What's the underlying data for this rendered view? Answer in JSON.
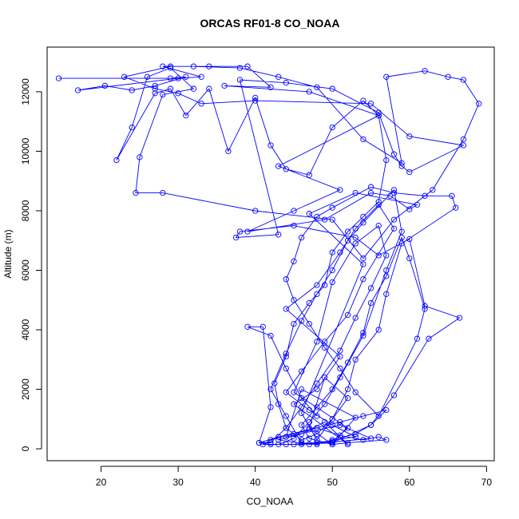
{
  "chart_data": {
    "type": "scatter",
    "title": "ORCAS RF01-8 CO_NOAA",
    "xlabel": "CO_NOAA",
    "ylabel": "Altitude (m)",
    "xlim": [
      13,
      71
    ],
    "ylim": [
      -400,
      13500
    ],
    "xticks": [
      20,
      30,
      40,
      50,
      60,
      70
    ],
    "yticks": [
      0,
      2000,
      4000,
      6000,
      8000,
      10000,
      12000
    ],
    "tick_labels_x": [
      "20",
      "30",
      "40",
      "50",
      "60",
      "70"
    ],
    "tick_labels_y": [
      "0",
      "2000",
      "4000",
      "6000",
      "8000",
      "10000",
      "12000"
    ],
    "grid": false,
    "legend": "none",
    "series_color": "#0000ff",
    "marker": "open-circle",
    "line": "connected",
    "series": [
      {
        "points": [
          [
            14.5,
            12450
          ],
          [
            29,
            12450
          ],
          [
            31,
            12500
          ],
          [
            27,
            12200
          ],
          [
            24,
            12050
          ],
          [
            20.5,
            12200
          ],
          [
            17,
            12050
          ],
          [
            30,
            12450
          ],
          [
            33,
            12500
          ],
          [
            28,
            12850
          ],
          [
            34,
            12850
          ],
          [
            39,
            12850
          ],
          [
            42,
            12150
          ],
          [
            36,
            12200
          ],
          [
            47,
            12000
          ],
          [
            56,
            11200
          ],
          [
            43,
            9500
          ],
          [
            51,
            8700
          ],
          [
            45,
            8000
          ],
          [
            39,
            7300
          ],
          [
            49,
            7700
          ],
          [
            55,
            8600
          ],
          [
            57.5,
            8500
          ],
          [
            60,
            8050
          ],
          [
            61,
            8200
          ],
          [
            53,
            8600
          ],
          [
            47,
            7900
          ],
          [
            54,
            6200
          ],
          [
            46,
            1200
          ],
          [
            48,
            300
          ],
          [
            52,
            1700
          ],
          [
            49,
            2400
          ],
          [
            47,
            700
          ],
          [
            50,
            150
          ],
          [
            53,
            1050
          ],
          [
            46,
            2000
          ],
          [
            44,
            400
          ],
          [
            51,
            800
          ],
          [
            55,
            350
          ],
          [
            47,
            150
          ],
          [
            43,
            300
          ],
          [
            46,
            500
          ],
          [
            49,
            900
          ],
          [
            52,
            150
          ],
          [
            45,
            1500
          ],
          [
            48,
            2000
          ],
          [
            51,
            3100
          ],
          [
            44,
            4700
          ],
          [
            48,
            5500
          ],
          [
            51,
            6600
          ],
          [
            53,
            7400
          ],
          [
            56,
            8200
          ],
          [
            58,
            7400
          ],
          [
            54,
            5700
          ],
          [
            52,
            4500
          ],
          [
            49,
            3600
          ],
          [
            46,
            2600
          ],
          [
            44,
            1900
          ],
          [
            47,
            1300
          ],
          [
            50,
            800
          ],
          [
            53,
            400
          ],
          [
            48,
            200
          ],
          [
            45,
            150
          ],
          [
            50,
            250
          ],
          [
            52,
            700
          ],
          [
            45,
            1900
          ],
          [
            48,
            3600
          ],
          [
            50,
            5600
          ],
          [
            53,
            6900
          ],
          [
            56,
            7500
          ],
          [
            57,
            6500
          ],
          [
            55,
            5400
          ],
          [
            53,
            4400
          ],
          [
            51,
            3300
          ],
          [
            48,
            2200
          ],
          [
            46,
            1400
          ],
          [
            44,
            700
          ],
          [
            42,
            200
          ],
          [
            40.5,
            200
          ],
          [
            43,
            400
          ],
          [
            47,
            650
          ],
          [
            51,
            900
          ],
          [
            54,
            1100
          ],
          [
            57,
            1300
          ],
          [
            55,
            800
          ],
          [
            53,
            500
          ],
          [
            50,
            300
          ],
          [
            48,
            150
          ],
          [
            46,
            200
          ],
          [
            44,
            1100
          ],
          [
            42,
            2000
          ],
          [
            44,
            3200
          ],
          [
            46,
            4300
          ],
          [
            48,
            5200
          ],
          [
            50,
            6000
          ],
          [
            52,
            7000
          ],
          [
            54,
            7600
          ],
          [
            58,
            8700
          ],
          [
            59,
            7300
          ],
          [
            57,
            6000
          ],
          [
            54,
            3800
          ],
          [
            51,
            2400
          ],
          [
            49,
            1500
          ],
          [
            47,
            900
          ],
          [
            45,
            350
          ],
          [
            43,
            150
          ],
          [
            41,
            150
          ],
          [
            42,
            300
          ],
          [
            45,
            500
          ],
          [
            48,
            700
          ],
          [
            51,
            450
          ],
          [
            54,
            300
          ],
          [
            56,
            400
          ],
          [
            57,
            300
          ],
          [
            52,
            200
          ],
          [
            50,
            150
          ],
          [
            47,
            350
          ],
          [
            46,
            800
          ],
          [
            48,
            1400
          ],
          [
            50,
            2000
          ],
          [
            52,
            2900
          ],
          [
            54,
            3900
          ],
          [
            55,
            4900
          ],
          [
            57,
            5800
          ],
          [
            59,
            7100
          ],
          [
            60,
            6400
          ],
          [
            62,
            4700
          ],
          [
            61,
            3700
          ],
          [
            56,
            1100
          ],
          [
            53,
            1900
          ],
          [
            51,
            2700
          ],
          [
            49,
            3400
          ],
          [
            47,
            4200
          ],
          [
            45,
            5000
          ],
          [
            44,
            5700
          ],
          [
            45,
            6300
          ],
          [
            46,
            7100
          ],
          [
            48,
            7800
          ],
          [
            50,
            8100
          ],
          [
            55,
            8800
          ],
          [
            58,
            8600
          ],
          [
            62,
            8500
          ],
          [
            65.5,
            8500
          ],
          [
            66,
            8100
          ],
          [
            59,
            6900
          ],
          [
            57,
            5200
          ],
          [
            56,
            4000
          ],
          [
            53,
            3000
          ],
          [
            52,
            2000
          ],
          [
            50,
            1000
          ],
          [
            48,
            500
          ],
          [
            46,
            300
          ],
          [
            44,
            700
          ],
          [
            43,
            1500
          ],
          [
            42.5,
            2200
          ],
          [
            44,
            3100
          ],
          [
            45,
            4200
          ],
          [
            47,
            4900
          ],
          [
            49,
            5500
          ],
          [
            50,
            6600
          ],
          [
            52,
            7300
          ],
          [
            54,
            7800
          ],
          [
            56,
            8300
          ],
          [
            57,
            9700
          ],
          [
            56,
            11200
          ],
          [
            54,
            11700
          ],
          [
            50,
            10800
          ],
          [
            47,
            9200
          ],
          [
            44,
            9400
          ],
          [
            42,
            10200
          ],
          [
            40,
            11800
          ],
          [
            36.5,
            10000
          ],
          [
            34,
            12100
          ],
          [
            31,
            11200
          ],
          [
            29,
            12100
          ],
          [
            27,
            11950
          ],
          [
            22,
            9700
          ],
          [
            24,
            10800
          ],
          [
            26,
            12500
          ],
          [
            29,
            12800
          ],
          [
            32,
            12100
          ],
          [
            28,
            11900
          ],
          [
            25,
            9800
          ],
          [
            24.5,
            8600
          ],
          [
            28,
            8600
          ],
          [
            40,
            8000
          ],
          [
            50,
            7700
          ],
          [
            54,
            6400
          ],
          [
            58,
            7700
          ],
          [
            63,
            8700
          ],
          [
            67,
            10400
          ],
          [
            69,
            11600
          ],
          [
            67,
            12400
          ],
          [
            65,
            12500
          ],
          [
            62,
            12700
          ],
          [
            57,
            12500
          ],
          [
            59,
            9600
          ],
          [
            54,
            10400
          ],
          [
            48,
            12150
          ],
          [
            43,
            12500
          ],
          [
            38,
            12800
          ],
          [
            32,
            12850
          ],
          [
            29,
            12850
          ],
          [
            23,
            12500
          ],
          [
            27,
            12100
          ],
          [
            30,
            11950
          ],
          [
            33,
            11600
          ],
          [
            40,
            11700
          ],
          [
            55,
            11600
          ],
          [
            60,
            10500
          ],
          [
            67,
            10200
          ],
          [
            60,
            9300
          ],
          [
            59,
            9500
          ],
          [
            58,
            9900
          ],
          [
            56,
            11300
          ],
          [
            50,
            12100
          ],
          [
            44,
            12300
          ],
          [
            38,
            12400
          ],
          [
            43,
            7200
          ],
          [
            37.5,
            7100
          ],
          [
            38,
            7300
          ],
          [
            45,
            7500
          ],
          [
            53,
            7100
          ],
          [
            56,
            6500
          ],
          [
            60,
            7050
          ],
          [
            62,
            4800
          ],
          [
            66.5,
            4400
          ],
          [
            62.5,
            3700
          ],
          [
            58,
            1800
          ],
          [
            55,
            800
          ],
          [
            50,
            200
          ],
          [
            46,
            150
          ],
          [
            44,
            150
          ],
          [
            42,
            150
          ],
          [
            40.5,
            200
          ],
          [
            42,
            1400
          ],
          [
            41,
            4100
          ],
          [
            39,
            4100
          ],
          [
            42,
            3800
          ],
          [
            44,
            2700
          ],
          [
            46,
            1700
          ],
          [
            48,
            1100
          ]
        ]
      }
    ]
  }
}
